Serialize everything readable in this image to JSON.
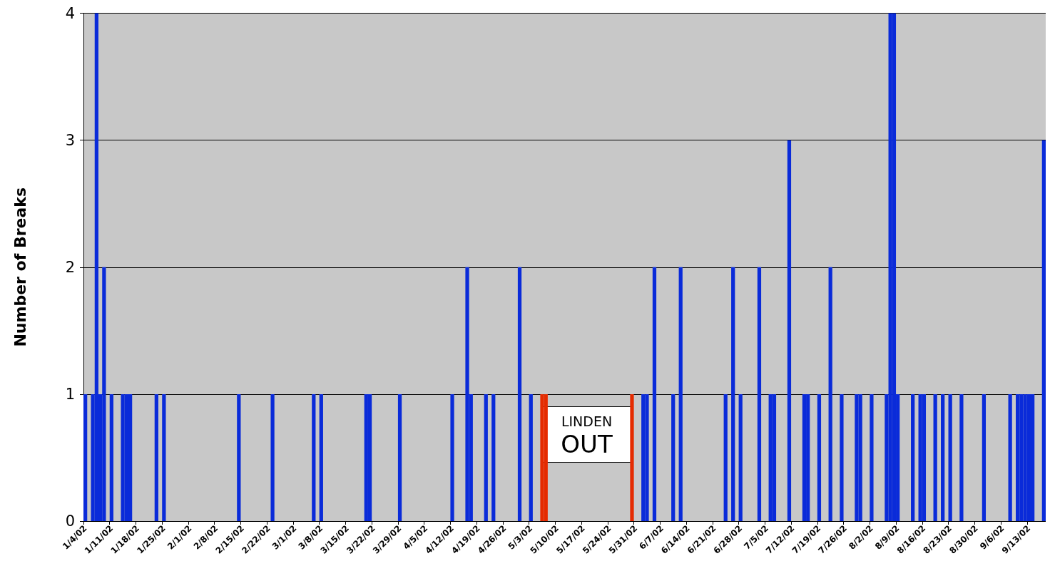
{
  "chart_data": {
    "type": "bar",
    "ylabel": "Number of Breaks",
    "annotations": [
      "LINDEN\nOUT"
    ],
    "grid": "y",
    "ylim": [
      0,
      4
    ],
    "yticks": [
      0,
      1,
      2,
      3,
      4
    ],
    "categories": [
      "1/4/02",
      null,
      null,
      null,
      null,
      null,
      null,
      "1/11/02",
      null,
      null,
      null,
      null,
      null,
      null,
      "1/18/02",
      null,
      null,
      null,
      null,
      null,
      null,
      "1/25/02",
      null,
      null,
      null,
      null,
      null,
      null,
      "2/1/02",
      null,
      null,
      null,
      null,
      null,
      null,
      "2/8/02",
      null,
      null,
      null,
      null,
      null,
      null,
      "2/15/02",
      null,
      null,
      null,
      null,
      null,
      null,
      "2/22/02",
      null,
      null,
      null,
      null,
      null,
      null,
      "3/1/02",
      null,
      null,
      null,
      null,
      null,
      null,
      "3/8/02",
      null,
      null,
      null,
      null,
      null,
      null,
      "3/15/02",
      null,
      null,
      null,
      null,
      null,
      null,
      "3/22/02",
      null,
      null,
      null,
      null,
      null,
      null,
      "3/29/02",
      null,
      null,
      null,
      null,
      null,
      null,
      "4/5/02",
      null,
      null,
      null,
      null,
      null,
      null,
      "4/12/02",
      null,
      null,
      null,
      null,
      null,
      null,
      "4/19/02",
      null,
      null,
      null,
      null,
      null,
      null,
      "4/26/02",
      null,
      null,
      null,
      null,
      null,
      null,
      "5/3/02",
      null,
      null,
      null,
      null,
      null,
      null,
      "5/10/02",
      null,
      null,
      null,
      null,
      null,
      null,
      "5/17/02",
      null,
      null,
      null,
      null,
      null,
      null,
      "5/24/02",
      null,
      null,
      null,
      null,
      null,
      null,
      "5/31/02",
      null,
      null,
      null,
      null,
      null,
      null,
      "6/7/02",
      null,
      null,
      null,
      null,
      null,
      null,
      "6/14/02",
      null,
      null,
      null,
      null,
      null,
      null,
      "6/21/02",
      null,
      null,
      null,
      null,
      null,
      null,
      "6/28/02",
      null,
      null,
      null,
      null,
      null,
      null,
      "7/5/02",
      null,
      null,
      null,
      null,
      null,
      null,
      "7/12/02",
      null,
      null,
      null,
      null,
      null,
      null,
      "7/19/02",
      null,
      null,
      null,
      null,
      null,
      null,
      "7/26/02",
      null,
      null,
      null,
      null,
      null,
      null,
      "8/2/02",
      null,
      null,
      null,
      null,
      null,
      null,
      "8/9/02",
      null,
      null,
      null,
      null,
      null,
      null,
      "8/16/02",
      null,
      null,
      null,
      null,
      null,
      null,
      "8/23/02",
      null,
      null,
      null,
      null,
      null,
      null,
      "8/30/02",
      null,
      null,
      null,
      null,
      null,
      null,
      "9/6/02",
      null,
      null,
      null,
      null,
      null,
      null,
      "9/13/02",
      null,
      null,
      null,
      null
    ],
    "values": [
      1,
      0,
      1,
      4,
      1,
      2,
      0,
      1,
      0,
      0,
      1,
      1,
      1,
      0,
      0,
      0,
      0,
      0,
      0,
      1,
      0,
      1,
      0,
      0,
      0,
      0,
      0,
      0,
      0,
      0,
      0,
      0,
      0,
      0,
      0,
      0,
      0,
      0,
      0,
      0,
      0,
      1,
      0,
      0,
      0,
      0,
      0,
      0,
      0,
      0,
      1,
      0,
      0,
      0,
      0,
      0,
      0,
      0,
      0,
      0,
      0,
      1,
      0,
      1,
      0,
      0,
      0,
      0,
      0,
      0,
      0,
      0,
      0,
      0,
      0,
      1,
      1,
      0,
      0,
      0,
      0,
      0,
      0,
      0,
      1,
      0,
      0,
      0,
      0,
      0,
      0,
      0,
      0,
      0,
      0,
      0,
      0,
      0,
      1,
      0,
      0,
      0,
      2,
      1,
      0,
      0,
      0,
      1,
      0,
      1,
      0,
      0,
      0,
      0,
      0,
      0,
      2,
      0,
      0,
      1,
      0,
      0,
      1,
      1,
      0,
      0,
      0,
      0,
      0,
      0,
      0,
      0,
      0,
      0,
      0,
      0,
      0,
      0,
      0,
      0,
      0,
      0,
      0,
      0,
      0,
      0,
      1,
      0,
      0,
      1,
      1,
      0,
      2,
      0,
      0,
      0,
      0,
      1,
      0,
      2,
      0,
      0,
      0,
      0,
      0,
      0,
      0,
      0,
      0,
      0,
      0,
      1,
      0,
      2,
      0,
      1,
      0,
      0,
      0,
      0,
      2,
      0,
      0,
      1,
      1,
      0,
      0,
      0,
      3,
      0,
      0,
      0,
      1,
      1,
      0,
      0,
      1,
      0,
      0,
      2,
      0,
      0,
      1,
      0,
      0,
      0,
      1,
      1,
      0,
      0,
      1,
      0,
      0,
      0,
      1,
      4,
      4,
      1,
      0,
      0,
      0,
      1,
      0,
      1,
      1,
      0,
      0,
      1,
      0,
      1,
      0,
      1,
      0,
      0,
      1,
      0,
      0,
      0,
      0,
      0,
      1,
      0,
      0,
      0,
      0,
      0,
      0,
      1,
      0,
      1,
      1,
      1,
      1,
      1,
      0,
      0,
      3
    ],
    "colors": [
      "#0a2bd9",
      "#0a2bd9",
      "#0a2bd9",
      "#0a2bd9",
      "#0a2bd9",
      "#0a2bd9",
      "#0a2bd9",
      "#0a2bd9",
      "#0a2bd9",
      "#0a2bd9",
      "#0a2bd9",
      "#0a2bd9",
      "#0a2bd9",
      "#0a2bd9",
      "#0a2bd9",
      "#0a2bd9",
      "#0a2bd9",
      "#0a2bd9",
      "#0a2bd9",
      "#0a2bd9",
      "#0a2bd9",
      "#0a2bd9",
      "#0a2bd9",
      "#0a2bd9",
      "#0a2bd9",
      "#0a2bd9",
      "#0a2bd9",
      "#0a2bd9",
      "#0a2bd9",
      "#0a2bd9",
      "#0a2bd9",
      "#0a2bd9",
      "#0a2bd9",
      "#0a2bd9",
      "#0a2bd9",
      "#0a2bd9",
      "#0a2bd9",
      "#0a2bd9",
      "#0a2bd9",
      "#0a2bd9",
      "#0a2bd9",
      "#0a2bd9",
      "#0a2bd9",
      "#0a2bd9",
      "#0a2bd9",
      "#0a2bd9",
      "#0a2bd9",
      "#0a2bd9",
      "#0a2bd9",
      "#0a2bd9",
      "#0a2bd9",
      "#0a2bd9",
      "#0a2bd9",
      "#0a2bd9",
      "#0a2bd9",
      "#0a2bd9",
      "#0a2bd9",
      "#0a2bd9",
      "#0a2bd9",
      "#0a2bd9",
      "#0a2bd9",
      "#0a2bd9",
      "#0a2bd9",
      "#0a2bd9",
      "#0a2bd9",
      "#0a2bd9",
      "#0a2bd9",
      "#0a2bd9",
      "#0a2bd9",
      "#0a2bd9",
      "#0a2bd9",
      "#0a2bd9",
      "#0a2bd9",
      "#0a2bd9",
      "#0a2bd9",
      "#0a2bd9",
      "#0a2bd9",
      "#0a2bd9",
      "#0a2bd9",
      "#0a2bd9",
      "#0a2bd9",
      "#0a2bd9",
      "#0a2bd9",
      "#0a2bd9",
      "#0a2bd9",
      "#0a2bd9",
      "#0a2bd9",
      "#0a2bd9",
      "#0a2bd9",
      "#0a2bd9",
      "#0a2bd9",
      "#0a2bd9",
      "#0a2bd9",
      "#0a2bd9",
      "#0a2bd9",
      "#0a2bd9",
      "#0a2bd9",
      "#0a2bd9",
      "#0a2bd9",
      "#0a2bd9",
      "#0a2bd9",
      "#0a2bd9",
      "#0a2bd9",
      "#0a2bd9",
      "#0a2bd9",
      "#0a2bd9",
      "#0a2bd9",
      "#0a2bd9",
      "#0a2bd9",
      "#0a2bd9",
      "#0a2bd9",
      "#0a2bd9",
      "#0a2bd9",
      "#0a2bd9",
      "#0a2bd9",
      "#0a2bd9",
      "#0a2bd9",
      "#0a2bd9",
      "#0a2bd9",
      "#0a2bd9",
      "#0a2bd9",
      "#0a2bd9",
      "#e52b00",
      "#e52b00",
      "#0a2bd9",
      "#0a2bd9",
      "#0a2bd9",
      "#0a2bd9",
      "#0a2bd9",
      "#0a2bd9",
      "#0a2bd9",
      "#0a2bd9",
      "#0a2bd9",
      "#0a2bd9",
      "#0a2bd9",
      "#0a2bd9",
      "#0a2bd9",
      "#0a2bd9",
      "#0a2bd9",
      "#0a2bd9",
      "#0a2bd9",
      "#0a2bd9",
      "#0a2bd9",
      "#0a2bd9",
      "#0a2bd9",
      "#0a2bd9",
      "#e52b00",
      "#0a2bd9",
      "#0a2bd9",
      "#0a2bd9",
      "#0a2bd9",
      "#0a2bd9",
      "#0a2bd9",
      "#0a2bd9",
      "#0a2bd9",
      "#0a2bd9",
      "#0a2bd9",
      "#0a2bd9",
      "#0a2bd9",
      "#0a2bd9",
      "#0a2bd9",
      "#0a2bd9",
      "#0a2bd9",
      "#0a2bd9",
      "#0a2bd9",
      "#0a2bd9",
      "#0a2bd9",
      "#0a2bd9",
      "#0a2bd9",
      "#0a2bd9",
      "#0a2bd9",
      "#0a2bd9",
      "#0a2bd9",
      "#0a2bd9",
      "#0a2bd9",
      "#0a2bd9",
      "#0a2bd9",
      "#0a2bd9",
      "#0a2bd9",
      "#0a2bd9",
      "#0a2bd9",
      "#0a2bd9",
      "#0a2bd9",
      "#0a2bd9",
      "#0a2bd9",
      "#0a2bd9",
      "#0a2bd9",
      "#0a2bd9",
      "#0a2bd9",
      "#0a2bd9",
      "#0a2bd9",
      "#0a2bd9",
      "#0a2bd9",
      "#0a2bd9",
      "#0a2bd9",
      "#0a2bd9",
      "#0a2bd9",
      "#0a2bd9",
      "#0a2bd9",
      "#0a2bd9",
      "#0a2bd9",
      "#0a2bd9",
      "#0a2bd9",
      "#0a2bd9",
      "#0a2bd9",
      "#0a2bd9",
      "#0a2bd9",
      "#0a2bd9",
      "#0a2bd9",
      "#0a2bd9",
      "#0a2bd9",
      "#0a2bd9",
      "#0a2bd9",
      "#0a2bd9",
      "#0a2bd9",
      "#0a2bd9",
      "#0a2bd9",
      "#0a2bd9",
      "#0a2bd9",
      "#0a2bd9",
      "#0a2bd9",
      "#0a2bd9",
      "#0a2bd9",
      "#0a2bd9",
      "#0a2bd9",
      "#0a2bd9",
      "#0a2bd9",
      "#0a2bd9",
      "#0a2bd9",
      "#0a2bd9",
      "#0a2bd9",
      "#0a2bd9",
      "#0a2bd9",
      "#0a2bd9",
      "#0a2bd9",
      "#0a2bd9",
      "#0a2bd9",
      "#0a2bd9",
      "#0a2bd9",
      "#0a2bd9",
      "#0a2bd9",
      "#0a2bd9",
      "#0a2bd9",
      "#0a2bd9",
      "#0a2bd9",
      "#0a2bd9",
      "#0a2bd9",
      "#0a2bd9",
      "#0a2bd9",
      "#0a2bd9",
      "#0a2bd9",
      "#0a2bd9",
      "#0a2bd9",
      "#0a2bd9",
      "#0a2bd9",
      "#0a2bd9",
      "#0a2bd9"
    ]
  }
}
